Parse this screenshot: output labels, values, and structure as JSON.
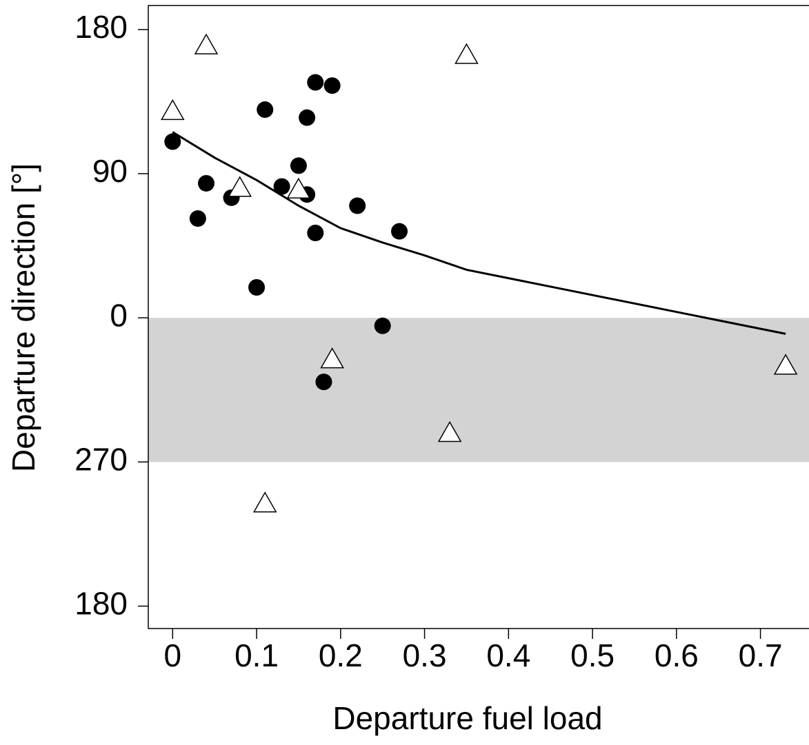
{
  "chart_data": {
    "type": "scatter",
    "xlabel": "Departure fuel load",
    "ylabel": "Departure direction [°]",
    "xlim": [
      -0.029,
      0.757
    ],
    "ylim": [
      -194,
      195
    ],
    "xticks": [
      0,
      0.1,
      0.2,
      0.3,
      0.4,
      0.5,
      0.6,
      0.7
    ],
    "yticks": [
      180,
      90,
      0,
      {
        "value": -90,
        "label": "270"
      },
      {
        "value": -180,
        "label": "180"
      }
    ],
    "band": {
      "ylim": [
        -90,
        0
      ],
      "color": "#d3d3d3"
    },
    "series": [
      {
        "marker": "circle",
        "color": "#000000",
        "x": [
          0,
          0.03,
          0.04,
          0.07,
          0.1,
          0.11,
          0.13,
          0.15,
          0.16,
          0.16,
          0.17,
          0.17,
          0.18,
          0.19,
          0.22,
          0.25,
          0.27
        ],
        "values": [
          110,
          62,
          84,
          75,
          19,
          130,
          82,
          95,
          125,
          77,
          147,
          53,
          -40,
          145,
          70,
          -5,
          54
        ]
      },
      {
        "marker": "triangle",
        "color": "#000000",
        "x": [
          0,
          0.04,
          0.08,
          0.15,
          0.11,
          0.19,
          0.33,
          0.35,
          0.73
        ],
        "values": [
          129,
          170,
          81,
          80,
          -116,
          -26,
          -72,
          164,
          -30
        ]
      },
      {
        "marker": "line",
        "color": "#000000",
        "x": [
          0,
          0.05,
          0.1,
          0.15,
          0.2,
          0.25,
          0.3,
          0.35,
          0.73
        ],
        "values": [
          116,
          100,
          86,
          70,
          56,
          47,
          39,
          30,
          -10
        ]
      }
    ]
  }
}
